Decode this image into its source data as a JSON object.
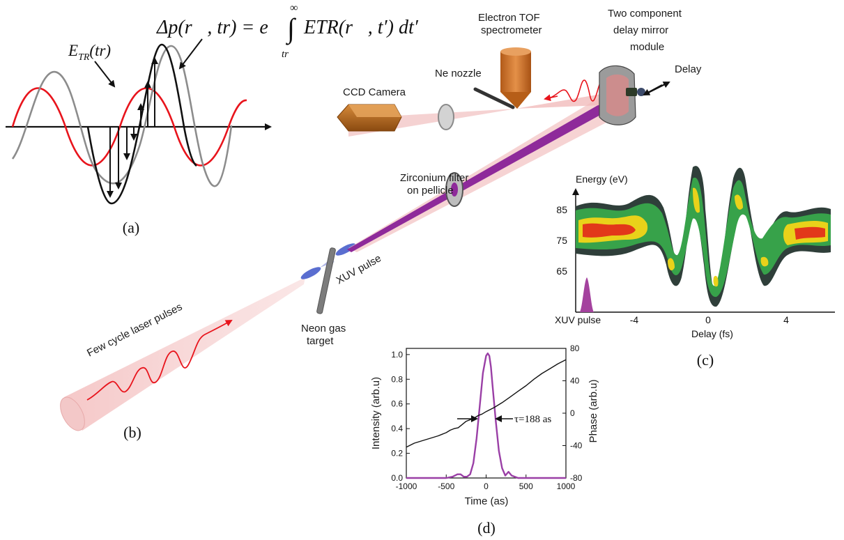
{
  "panel_a": {
    "formula_lhs": "Δp(r⃗, tr) = e",
    "integral_upper": "∞",
    "integral_lower": "tr",
    "integrand": "ETR(r⃗, t′) dt′",
    "field_label_main": "E",
    "field_label_sub": "TR",
    "field_label_arg": "(tr)",
    "caption": "(a)",
    "colors": {
      "field": "#e8141c",
      "vector_potential": "#8c8c8c",
      "momentum": "#111111"
    }
  },
  "panel_b": {
    "caption": "(b)",
    "labels": {
      "laser": "Few cycle laser pulses",
      "neon_target": "Neon gas",
      "neon_target_2": "target",
      "xuv": "XUV pulse",
      "zr_filter": "Zirconium filter",
      "zr_filter_2": "on pellicle",
      "ccd": "CCD Camera",
      "nozzle": "Ne nozzle",
      "tof": "Electron TOF",
      "tof_2": "spectrometer",
      "mirror": "Two component",
      "mirror_2": "delay mirror",
      "mirror_3": "module",
      "delay": "Delay"
    },
    "colors": {
      "beam": "#f2b5b5",
      "xuv_beam": "#8e2a9a",
      "camera": "#c8701c",
      "tof": "#d2742a"
    }
  },
  "panel_c": {
    "caption": "(c)",
    "ylabel": "Energy (eV)",
    "xlabel": "Delay (fs)",
    "xuv_label": "XUV pulse",
    "xticks": [
      "-4",
      "0",
      "4"
    ],
    "yticks": [
      "85",
      "75",
      "65"
    ]
  },
  "chart_data": {
    "type": "line",
    "xlabel": "Time (as)",
    "ylabel": "Intensity (arb.u)",
    "y2label": "Phase (arb.u)",
    "xlim": [
      -1000,
      1000
    ],
    "ylim": [
      0,
      1.05
    ],
    "y2lim": [
      -80,
      80
    ],
    "xticks": [
      "-1000",
      "-500",
      "0",
      "500",
      "1000"
    ],
    "yticks": [
      "0.0",
      "0.2",
      "0.4",
      "0.6",
      "0.8",
      "1.0"
    ],
    "y2ticks": [
      "-80",
      "-40",
      "0",
      "40",
      "80"
    ],
    "annotation": "τ=188 as",
    "caption": "(d)",
    "series": [
      {
        "axis": "left",
        "color": "#9a3fa6",
        "x": [
          -1000,
          -500,
          -420,
          -360,
          -320,
          -280,
          -240,
          -200,
          -160,
          -120,
          -80,
          -40,
          0,
          20,
          40,
          60,
          80,
          120,
          160,
          200,
          240,
          280,
          320,
          360,
          400,
          500,
          1000
        ],
        "y": [
          0.0,
          0.0,
          0.01,
          0.03,
          0.03,
          0.01,
          0.01,
          0.03,
          0.12,
          0.32,
          0.58,
          0.85,
          0.99,
          1.01,
          0.99,
          0.9,
          0.75,
          0.47,
          0.22,
          0.08,
          0.02,
          0.05,
          0.02,
          0.01,
          0.0,
          0.0,
          0.0
        ]
      },
      {
        "axis": "right",
        "color": "#111111",
        "x": [
          -1000,
          -900,
          -800,
          -700,
          -600,
          -550,
          -500,
          -450,
          -400,
          -350,
          -300,
          -250,
          -200,
          -150,
          -100,
          -50,
          0,
          100,
          200,
          300,
          400,
          500,
          600,
          700,
          800,
          900,
          1000
        ],
        "y": [
          -42,
          -37,
          -34,
          -31,
          -28,
          -26,
          -24,
          -21,
          -19,
          -18,
          -14,
          -10,
          -8,
          -6,
          -3,
          -1,
          2,
          7,
          13,
          20,
          27,
          34,
          42,
          49,
          55,
          61,
          66
        ]
      }
    ]
  }
}
